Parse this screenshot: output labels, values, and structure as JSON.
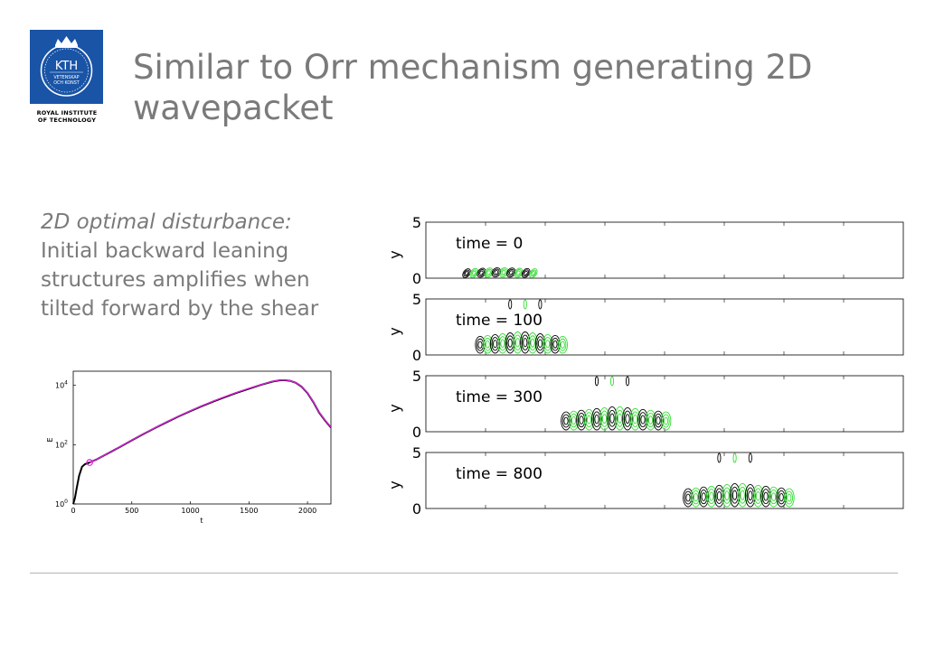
{
  "logo": {
    "abbrev": "KTH",
    "motto_line1": "VETENSKAP",
    "motto_line2": "OCH KONST",
    "caption_line1": "ROYAL INSTITUTE",
    "caption_line2": "OF TECHNOLOGY",
    "color": "#1954a6"
  },
  "slide": {
    "title": "Similar to Orr mechanism generating 2D wavepacket"
  },
  "body": {
    "heading": "2D optimal disturbance:",
    "lines": [
      "Initial backward leaning",
      "structures amplifies when",
      "tilted forward by the shear"
    ]
  },
  "chart_data": [
    {
      "type": "line",
      "xlabel": "t",
      "ylabel": "E",
      "xlim": [
        0,
        2200
      ],
      "ylim": [
        1,
        30000
      ],
      "yscale": "log",
      "xticks": [
        "0",
        "500",
        "1000",
        "1500",
        "2000"
      ],
      "yticks": [
        {
          "base": "10",
          "exp": "0"
        },
        {
          "base": "10",
          "exp": "2"
        },
        {
          "base": "10",
          "exp": "4"
        }
      ],
      "series": [
        {
          "color": "#000000",
          "x": [
            0,
            15,
            30,
            50,
            75,
            100,
            140,
            200,
            300,
            400,
            500,
            600,
            700,
            800,
            900,
            1000,
            1100,
            1200,
            1300,
            1400,
            1500,
            1600,
            1700,
            1760,
            1800,
            1850,
            1900,
            1950,
            2000,
            2050,
            2100,
            2150,
            2200
          ],
          "y": [
            1,
            1.6,
            3.5,
            9,
            18,
            22,
            25,
            32,
            52,
            85,
            140,
            230,
            370,
            580,
            900,
            1350,
            2000,
            2900,
            4100,
            5700,
            7700,
            10300,
            13400,
            14800,
            15000,
            14300,
            12200,
            9000,
            5500,
            2700,
            1200,
            650,
            380
          ]
        },
        {
          "color": "#e020e0",
          "x": [
            140,
            200,
            300,
            400,
            500,
            600,
            700,
            800,
            900,
            1000,
            1100,
            1200,
            1300,
            1400,
            1500,
            1600,
            1700,
            1760,
            1800,
            1850,
            1900,
            1950,
            2000,
            2050,
            2100,
            2150,
            2200
          ],
          "y": [
            25,
            32,
            52,
            86,
            142,
            232,
            375,
            590,
            915,
            1380,
            2050,
            2980,
            4200,
            5850,
            7900,
            10500,
            13600,
            15000,
            15200,
            14400,
            12300,
            9100,
            5600,
            2750,
            1220,
            660,
            390
          ]
        }
      ],
      "marker": {
        "x": 140,
        "y": 25,
        "color": "#e020e0"
      }
    },
    {
      "type": "contour",
      "ylabel": "y",
      "yticks": [
        "0",
        "5"
      ],
      "ylim": [
        0,
        5
      ],
      "panels": [
        {
          "label": "time = 0"
        },
        {
          "label": "time = 100"
        },
        {
          "label": "time = 300"
        },
        {
          "label": "time = 800"
        }
      ],
      "colors": {
        "negative": "#000000",
        "positive": "#33dd33"
      }
    }
  ]
}
